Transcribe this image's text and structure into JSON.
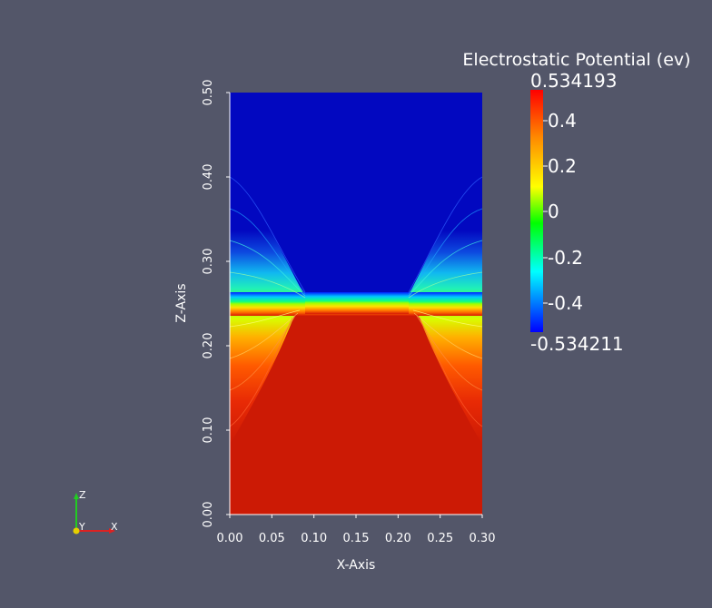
{
  "plot": {
    "x_axis_title": "X-Axis",
    "z_axis_title": "Z-Axis",
    "x_ticks": [
      "0.00",
      "0.05",
      "0.10",
      "0.15",
      "0.20",
      "0.25",
      "0.30"
    ],
    "z_ticks": [
      "0.00",
      "0.10",
      "0.20",
      "0.30",
      "0.40",
      "0.50"
    ]
  },
  "colorbar": {
    "title": "Electrostatic Potential (ev)",
    "max_label": "0.534193",
    "min_label": "-0.534211",
    "ticks": [
      "0.4",
      "0.2",
      "0",
      "-0.2",
      "-0.4"
    ],
    "colors": [
      "#ff0000",
      "#ff8c00",
      "#ffff00",
      "#00ff00",
      "#00ffff",
      "#0000ff"
    ]
  },
  "orientation_axes": {
    "x": "X",
    "y": "Y",
    "z": "Z"
  },
  "field_colors": {
    "high": "#cc1a05",
    "low": "#0208c0"
  }
}
